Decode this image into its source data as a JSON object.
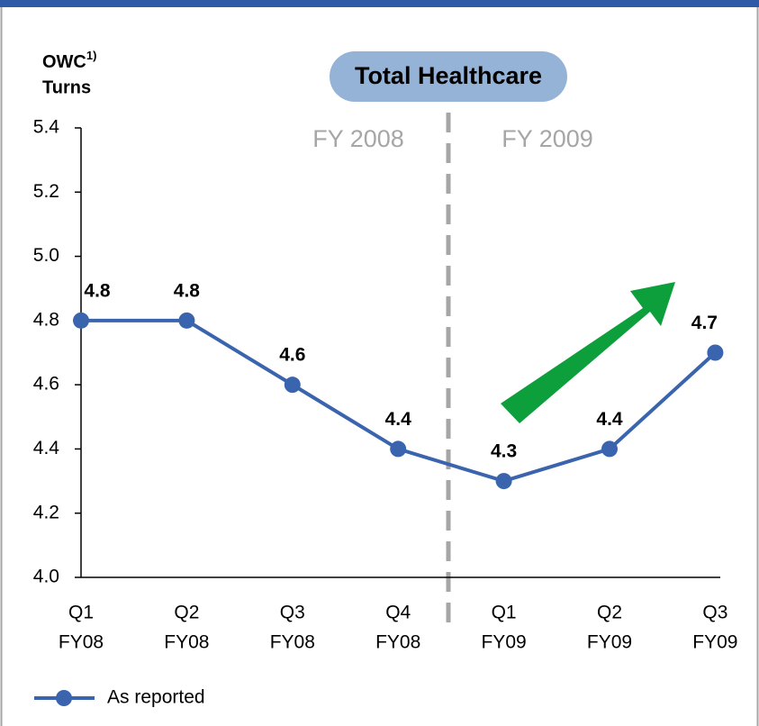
{
  "chart_data": {
    "type": "line",
    "title": "Total Healthcare",
    "y_label": {
      "text": "OWC",
      "superscript": "1)",
      "line2": "Turns"
    },
    "annotations": [
      "FY 2008",
      "FY 2009"
    ],
    "categories": [
      [
        "Q1",
        "FY08"
      ],
      [
        "Q2",
        "FY08"
      ],
      [
        "Q3",
        "FY08"
      ],
      [
        "Q4",
        "FY08"
      ],
      [
        "Q1",
        "FY09"
      ],
      [
        "Q2",
        "FY09"
      ],
      [
        "Q3",
        "FY09"
      ]
    ],
    "series": [
      {
        "name": "As reported",
        "color": "#3a64ad",
        "values": [
          4.8,
          4.8,
          4.6,
          4.4,
          4.3,
          4.4,
          4.7
        ]
      }
    ],
    "ylim": [
      4.0,
      5.4
    ],
    "yticks": [
      {
        "value": 4.0,
        "label": "4.0"
      },
      4.2,
      4.4,
      4.6,
      4.8,
      {
        "value": 5.0,
        "label": "5.0"
      },
      5.2,
      5.4
    ],
    "grid": false,
    "legend": "bottom-left"
  }
}
